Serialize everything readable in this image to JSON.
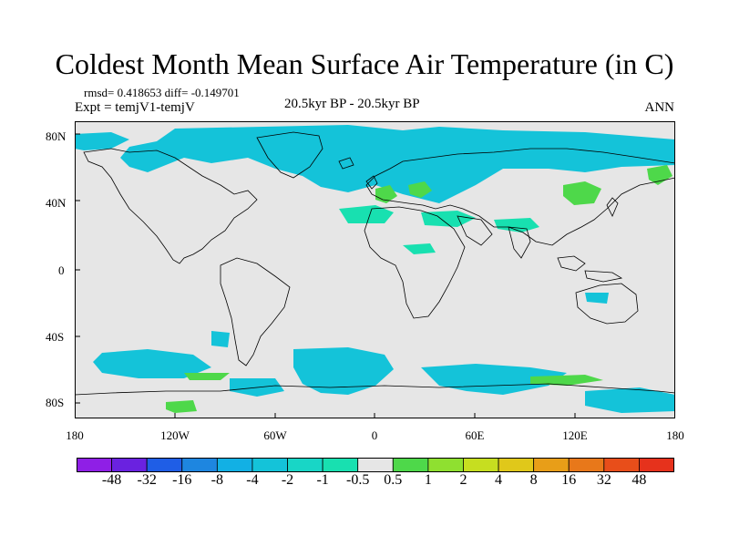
{
  "title": "Coldest Month Mean Surface Air Temperature (in C)",
  "stats": "rmsd= 0.418653 diff= -0.149701",
  "experiment": "Expt = temjV1-temjV",
  "period": "20.5kyr BP - 20.5kyr BP",
  "season": "ANN",
  "lat_labels": [
    "80N",
    "40N",
    "0",
    "40S",
    "80S"
  ],
  "lon_labels": [
    "180",
    "120W",
    "60W",
    "0",
    "60E",
    "120E",
    "180"
  ],
  "colors": {
    "background_diff": "#e6e6e6",
    "coastline": "#000000",
    "scale": [
      "#8f1fe6",
      "#6a22e0",
      "#1f5ee6",
      "#1e86e0",
      "#12b0e4",
      "#14c3d9",
      "#18d6c6",
      "#18e0b0",
      "#e6e6e6",
      "#4ed84a",
      "#8fe030",
      "#c6de20",
      "#e0c81a",
      "#e89e18",
      "#e8781a",
      "#e84e1a",
      "#e6321c"
    ]
  },
  "legend": {
    "labels": [
      "-48",
      "-32",
      "-16",
      "-8",
      "-4",
      "-2",
      "-1",
      "-0.5",
      "0.5",
      "1",
      "2",
      "4",
      "8",
      "16",
      "32",
      "48"
    ]
  }
}
